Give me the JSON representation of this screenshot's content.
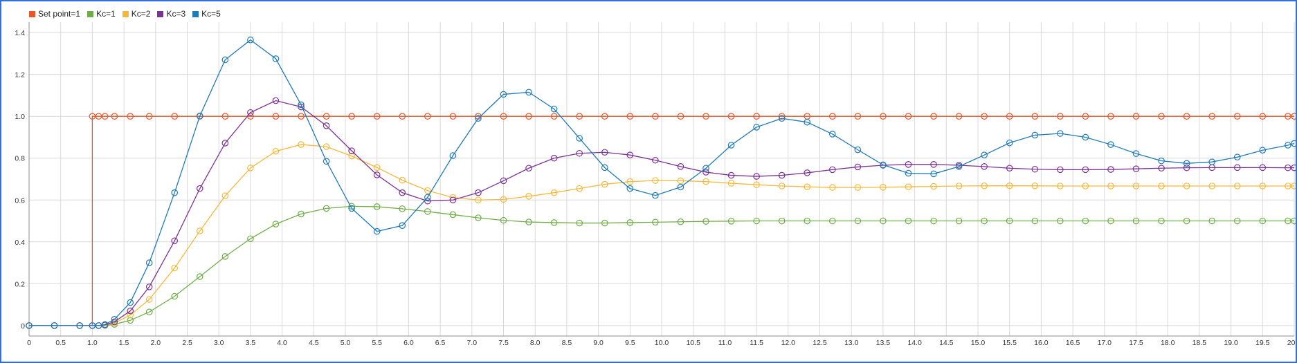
{
  "chart_data": {
    "type": "line",
    "title": "",
    "xlabel": "",
    "ylabel": "",
    "xlim": [
      0,
      20
    ],
    "ylim": [
      -0.05,
      1.45
    ],
    "xticks": [
      "0",
      "0.5",
      "1.0",
      "1.5",
      "2.0",
      "2.5",
      "3.0",
      "3.5",
      "4.0",
      "4.5",
      "5.0",
      "5.5",
      "6.0",
      "6.5",
      "7.0",
      "7.5",
      "8.0",
      "8.5",
      "9.0",
      "9.5",
      "10.0",
      "10.5",
      "11.0",
      "11.5",
      "12.0",
      "12.5",
      "13.0",
      "13.5",
      "14.0",
      "14.5",
      "15.0",
      "15.5",
      "16.0",
      "16.5",
      "17.0",
      "17.5",
      "18.0",
      "18.5",
      "19.0",
      "19.5",
      "20.0"
    ],
    "yticks": [
      "0",
      "0.2",
      "0.4",
      "0.6",
      "0.8",
      "1.0",
      "1.2",
      "1.4"
    ],
    "grid": true,
    "legend_position": "top-left",
    "series": [
      {
        "name": "Set point=1",
        "color": "#e8572a",
        "step": true,
        "x": [
          0,
          0.4,
          0.8,
          1.0,
          1.1,
          1.2,
          1.35,
          1.6,
          1.9,
          2.3,
          2.7,
          3.1,
          3.5,
          3.9,
          4.3,
          4.7,
          5.1,
          5.5,
          5.9,
          6.3,
          6.7,
          7.1,
          7.5,
          7.9,
          8.3,
          8.7,
          9.1,
          9.5,
          9.9,
          10.3,
          10.7,
          11.1,
          11.5,
          11.9,
          12.3,
          12.7,
          13.1,
          13.5,
          13.9,
          14.3,
          14.7,
          15.1,
          15.5,
          15.9,
          16.3,
          16.7,
          17.1,
          17.5,
          17.9,
          18.3,
          18.7,
          19.1,
          19.5,
          19.9,
          20.0
        ],
        "y": [
          0,
          0,
          0,
          1,
          1,
          1,
          1,
          1,
          1,
          1,
          1,
          1,
          1,
          1,
          1,
          1,
          1,
          1,
          1,
          1,
          1,
          1,
          1,
          1,
          1,
          1,
          1,
          1,
          1,
          1,
          1,
          1,
          1,
          1,
          1,
          1,
          1,
          1,
          1,
          1,
          1,
          1,
          1,
          1,
          1,
          1,
          1,
          1,
          1,
          1,
          1,
          1,
          1,
          1,
          1
        ]
      },
      {
        "name": "Kc=1",
        "color": "#70ad47",
        "x": [
          0,
          0.4,
          0.8,
          1.0,
          1.1,
          1.2,
          1.35,
          1.6,
          1.9,
          2.3,
          2.7,
          3.1,
          3.5,
          3.9,
          4.3,
          4.7,
          5.1,
          5.5,
          5.9,
          6.3,
          6.7,
          7.1,
          7.5,
          7.9,
          8.3,
          8.7,
          9.1,
          9.5,
          9.9,
          10.3,
          10.7,
          11.1,
          11.5,
          11.9,
          12.3,
          12.7,
          13.1,
          13.5,
          13.9,
          14.3,
          14.7,
          15.1,
          15.5,
          15.9,
          16.3,
          16.7,
          17.1,
          17.5,
          17.9,
          18.3,
          18.7,
          19.1,
          19.5,
          19.9,
          20.0
        ],
        "y": [
          0,
          0,
          0,
          0,
          0,
          0.001,
          0.006,
          0.025,
          0.065,
          0.14,
          0.234,
          0.33,
          0.415,
          0.485,
          0.533,
          0.56,
          0.57,
          0.568,
          0.558,
          0.545,
          0.53,
          0.515,
          0.503,
          0.495,
          0.492,
          0.49,
          0.49,
          0.492,
          0.494,
          0.496,
          0.498,
          0.499,
          0.5,
          0.5,
          0.5,
          0.5,
          0.5,
          0.5,
          0.5,
          0.5,
          0.5,
          0.5,
          0.5,
          0.5,
          0.5,
          0.5,
          0.5,
          0.5,
          0.5,
          0.5,
          0.5,
          0.5,
          0.5,
          0.5,
          0.5
        ]
      },
      {
        "name": "Kc=2",
        "color": "#f5b93a",
        "x": [
          0,
          0.4,
          0.8,
          1.0,
          1.1,
          1.2,
          1.35,
          1.6,
          1.9,
          2.3,
          2.7,
          3.1,
          3.5,
          3.9,
          4.3,
          4.7,
          5.1,
          5.5,
          5.9,
          6.3,
          6.7,
          7.1,
          7.5,
          7.9,
          8.3,
          8.7,
          9.1,
          9.5,
          9.9,
          10.3,
          10.7,
          11.1,
          11.5,
          11.9,
          12.3,
          12.7,
          13.1,
          13.5,
          13.9,
          14.3,
          14.7,
          15.1,
          15.5,
          15.9,
          16.3,
          16.7,
          17.1,
          17.5,
          17.9,
          18.3,
          18.7,
          19.1,
          19.5,
          19.9,
          20.0
        ],
        "y": [
          0,
          0,
          0,
          0,
          0,
          0.002,
          0.012,
          0.05,
          0.125,
          0.275,
          0.452,
          0.62,
          0.753,
          0.833,
          0.865,
          0.855,
          0.81,
          0.755,
          0.695,
          0.645,
          0.612,
          0.6,
          0.603,
          0.618,
          0.635,
          0.655,
          0.675,
          0.688,
          0.693,
          0.692,
          0.688,
          0.68,
          0.673,
          0.667,
          0.663,
          0.66,
          0.66,
          0.661,
          0.663,
          0.665,
          0.667,
          0.668,
          0.668,
          0.668,
          0.667,
          0.667,
          0.667,
          0.667,
          0.667,
          0.667,
          0.667,
          0.667,
          0.667,
          0.667,
          0.667
        ]
      },
      {
        "name": "Kc=3",
        "color": "#7b3294",
        "x": [
          0,
          0.4,
          0.8,
          1.0,
          1.1,
          1.2,
          1.35,
          1.6,
          1.9,
          2.3,
          2.7,
          3.1,
          3.5,
          3.9,
          4.3,
          4.7,
          5.1,
          5.5,
          5.9,
          6.3,
          6.7,
          7.1,
          7.5,
          7.9,
          8.3,
          8.7,
          9.1,
          9.5,
          9.9,
          10.3,
          10.7,
          11.1,
          11.5,
          11.9,
          12.3,
          12.7,
          13.1,
          13.5,
          13.9,
          14.3,
          14.7,
          15.1,
          15.5,
          15.9,
          16.3,
          16.7,
          17.1,
          17.5,
          17.9,
          18.3,
          18.7,
          19.1,
          19.5,
          19.9,
          20.0
        ],
        "y": [
          0,
          0,
          0,
          0,
          0,
          0.003,
          0.018,
          0.07,
          0.185,
          0.405,
          0.655,
          0.872,
          1.018,
          1.075,
          1.045,
          0.955,
          0.835,
          0.72,
          0.635,
          0.595,
          0.6,
          0.635,
          0.692,
          0.752,
          0.8,
          0.823,
          0.828,
          0.815,
          0.79,
          0.76,
          0.733,
          0.718,
          0.713,
          0.718,
          0.73,
          0.745,
          0.758,
          0.766,
          0.77,
          0.77,
          0.766,
          0.76,
          0.752,
          0.747,
          0.745,
          0.745,
          0.746,
          0.749,
          0.752,
          0.754,
          0.755,
          0.755,
          0.755,
          0.754,
          0.754
        ]
      },
      {
        "name": "Kc=5",
        "color": "#1f7ab8",
        "x": [
          0,
          0.4,
          0.8,
          1.0,
          1.1,
          1.2,
          1.35,
          1.6,
          1.9,
          2.3,
          2.7,
          3.1,
          3.5,
          3.9,
          4.3,
          4.7,
          5.1,
          5.5,
          5.9,
          6.3,
          6.7,
          7.1,
          7.5,
          7.9,
          8.3,
          8.7,
          9.1,
          9.5,
          9.9,
          10.3,
          10.7,
          11.1,
          11.5,
          11.9,
          12.3,
          12.7,
          13.1,
          13.5,
          13.9,
          14.3,
          14.7,
          15.1,
          15.5,
          15.9,
          16.3,
          16.7,
          17.1,
          17.5,
          17.9,
          18.3,
          18.7,
          19.1,
          19.5,
          19.9,
          20.0
        ],
        "y": [
          0,
          0,
          0,
          0,
          0,
          0.005,
          0.03,
          0.11,
          0.3,
          0.635,
          1.002,
          1.27,
          1.365,
          1.275,
          1.055,
          0.785,
          0.56,
          0.45,
          0.478,
          0.613,
          0.812,
          0.99,
          1.105,
          1.115,
          1.035,
          0.895,
          0.755,
          0.655,
          0.622,
          0.662,
          0.752,
          0.862,
          0.948,
          0.99,
          0.972,
          0.915,
          0.84,
          0.768,
          0.728,
          0.725,
          0.76,
          0.815,
          0.873,
          0.91,
          0.918,
          0.9,
          0.865,
          0.822,
          0.787,
          0.775,
          0.782,
          0.805,
          0.838,
          0.862,
          0.87
        ]
      }
    ]
  }
}
